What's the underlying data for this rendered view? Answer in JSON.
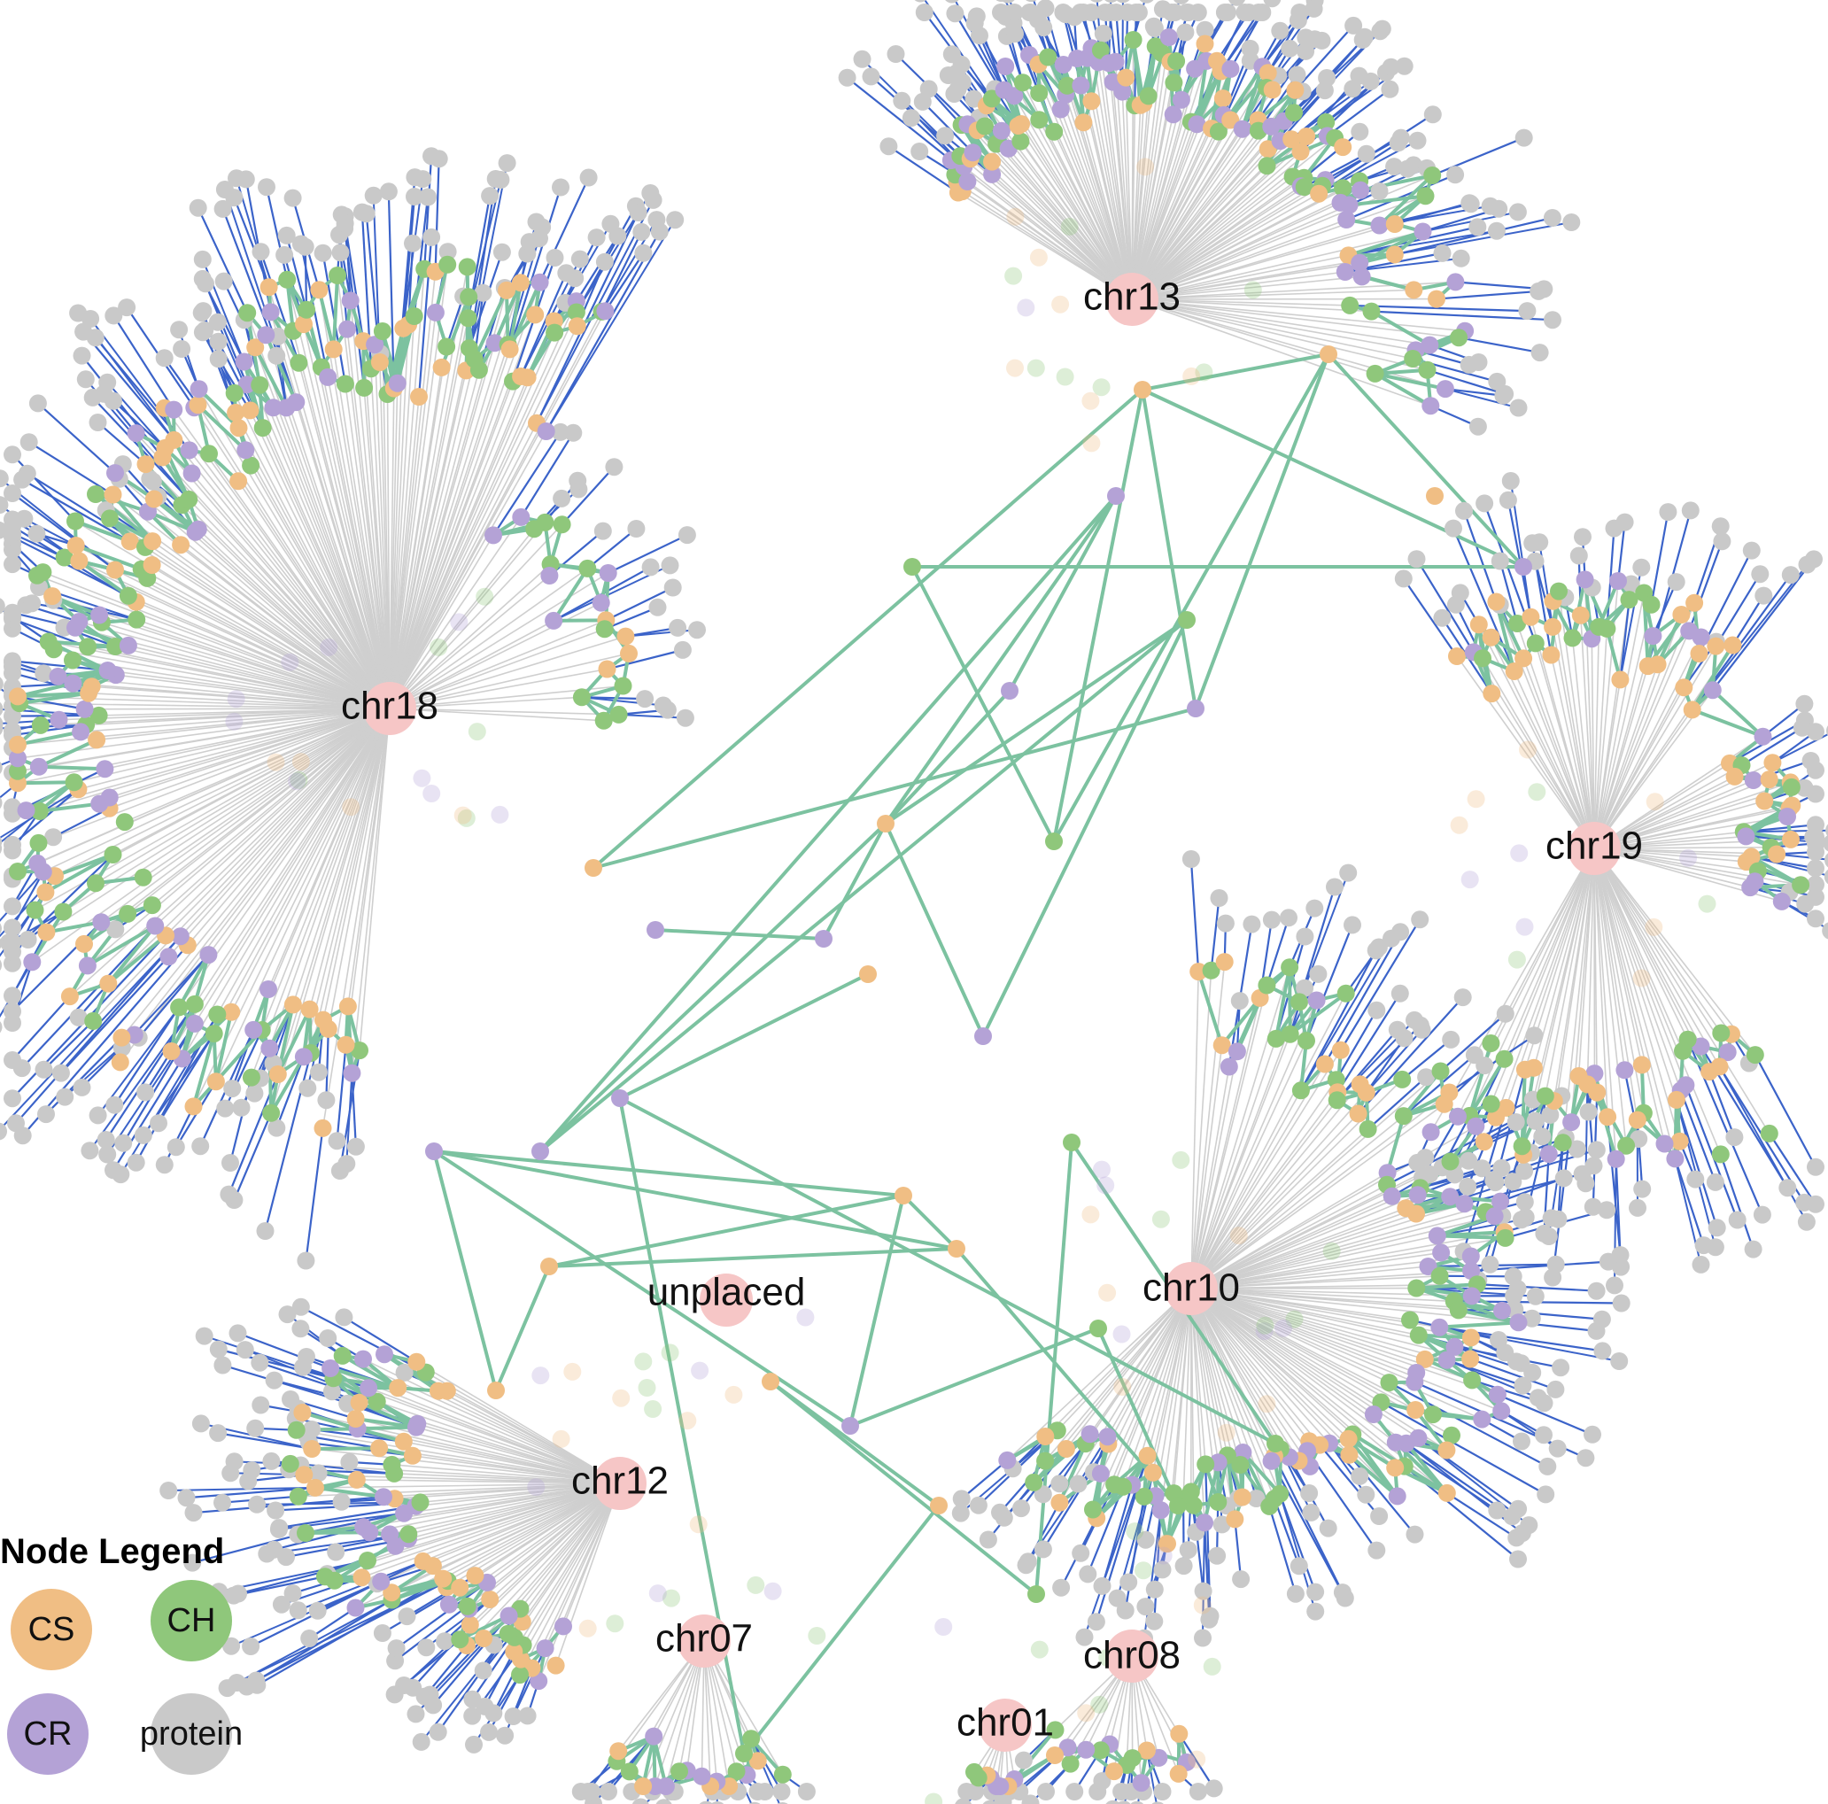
{
  "colors": {
    "CS": "#F0BE84",
    "CH": "#8FC77B",
    "CR": "#B4A2D6",
    "protein": "#C9C9C9",
    "hub": "#F6C6C6",
    "edge_hub": "#CFCFCF",
    "edge_protein": "#3B63C9",
    "edge_interaction": "#7CC2A0"
  },
  "hubs": [
    {
      "id": "chr18",
      "label": "chr18"
    },
    {
      "id": "chr13",
      "label": "chr13"
    },
    {
      "id": "chr19",
      "label": "chr19"
    },
    {
      "id": "chr10",
      "label": "chr10"
    },
    {
      "id": "unplaced",
      "label": "unplaced"
    },
    {
      "id": "chr12",
      "label": "chr12"
    },
    {
      "id": "chr07",
      "label": "chr07"
    },
    {
      "id": "chr08",
      "label": "chr08"
    },
    {
      "id": "chr01",
      "label": "chr01"
    }
  ],
  "legend": {
    "title": "Node Legend",
    "items": [
      {
        "key": "CS",
        "label": "CS"
      },
      {
        "key": "CH",
        "label": "CH"
      },
      {
        "key": "CR",
        "label": "CR"
      },
      {
        "key": "protein",
        "label": "protein"
      }
    ]
  }
}
